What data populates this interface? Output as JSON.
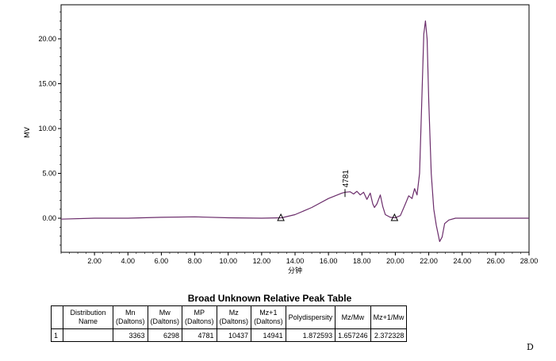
{
  "chart_data": {
    "type": "line",
    "xlabel": "分钟",
    "ylabel": "MV",
    "xlim": [
      0,
      28
    ],
    "ylim": [
      -3.8,
      23.8
    ],
    "x_ticks": [
      "2.00",
      "4.00",
      "6.00",
      "8.00",
      "10.00",
      "12.00",
      "14.00",
      "16.00",
      "18.00",
      "20.00",
      "22.00",
      "24.00",
      "26.00",
      "28.00"
    ],
    "y_ticks": [
      "0.00",
      "5.00",
      "10.00",
      "15.00",
      "20.00"
    ],
    "series": [
      {
        "color": "#6b2d6b",
        "points": [
          [
            0.0,
            -0.1
          ],
          [
            2.0,
            0.0
          ],
          [
            4.0,
            0.0
          ],
          [
            6.0,
            0.1
          ],
          [
            8.0,
            0.15
          ],
          [
            10.0,
            0.05
          ],
          [
            12.0,
            0.0
          ],
          [
            13.2,
            0.05
          ],
          [
            14.0,
            0.4
          ],
          [
            15.0,
            1.2
          ],
          [
            16.0,
            2.2
          ],
          [
            16.8,
            2.8
          ],
          [
            17.0,
            2.9
          ],
          [
            17.3,
            2.95
          ],
          [
            17.5,
            2.7
          ],
          [
            17.7,
            3.0
          ],
          [
            17.9,
            2.6
          ],
          [
            18.1,
            2.9
          ],
          [
            18.3,
            2.1
          ],
          [
            18.5,
            2.8
          ],
          [
            18.65,
            1.6
          ],
          [
            18.75,
            1.2
          ],
          [
            18.9,
            1.6
          ],
          [
            19.1,
            2.6
          ],
          [
            19.25,
            1.3
          ],
          [
            19.4,
            0.4
          ],
          [
            19.7,
            0.1
          ],
          [
            20.0,
            0.05
          ],
          [
            20.3,
            0.3
          ],
          [
            20.6,
            1.6
          ],
          [
            20.8,
            2.5
          ],
          [
            21.0,
            2.2
          ],
          [
            21.15,
            3.3
          ],
          [
            21.3,
            2.6
          ],
          [
            21.45,
            5.0
          ],
          [
            21.6,
            14.0
          ],
          [
            21.7,
            20.5
          ],
          [
            21.8,
            22.0
          ],
          [
            21.9,
            20.0
          ],
          [
            22.0,
            13.0
          ],
          [
            22.15,
            5.0
          ],
          [
            22.3,
            1.0
          ],
          [
            22.45,
            -0.8
          ],
          [
            22.65,
            -2.6
          ],
          [
            22.8,
            -2.1
          ],
          [
            22.95,
            -0.6
          ],
          [
            23.2,
            -0.2
          ],
          [
            23.6,
            0.0
          ],
          [
            25.0,
            0.0
          ],
          [
            28.0,
            0.0
          ]
        ]
      }
    ],
    "annotations": [
      {
        "text": "4781",
        "x": 16.99,
        "y": 2.9
      }
    ],
    "markers": [
      {
        "shape": "triangle",
        "x": 13.15,
        "y": 0.0
      },
      {
        "shape": "triangle",
        "x": 19.95,
        "y": 0.0
      }
    ],
    "grid": false
  },
  "table": {
    "title": "Broad Unknown Relative Peak Table",
    "headers": [
      {
        "line1": "",
        "line2": ""
      },
      {
        "line1": "Distribution",
        "line2": "Name"
      },
      {
        "line1": "Mn",
        "line2": "(Daltons)"
      },
      {
        "line1": "Mw",
        "line2": "(Daltons)"
      },
      {
        "line1": "MP",
        "line2": "(Daltons)"
      },
      {
        "line1": "Mz",
        "line2": "(Daltons)"
      },
      {
        "line1": "Mz+1",
        "line2": "(Daltons)"
      },
      {
        "line1": "Polydispersity",
        "line2": ""
      },
      {
        "line1": "Mz/Mw",
        "line2": ""
      },
      {
        "line1": "Mz+1/Mw",
        "line2": ""
      }
    ],
    "rows": [
      [
        "1",
        "",
        "3363",
        "6298",
        "4781",
        "10437",
        "14941",
        "1.872593",
        "1.657246",
        "2.372328"
      ]
    ]
  },
  "corner_mark": "D"
}
